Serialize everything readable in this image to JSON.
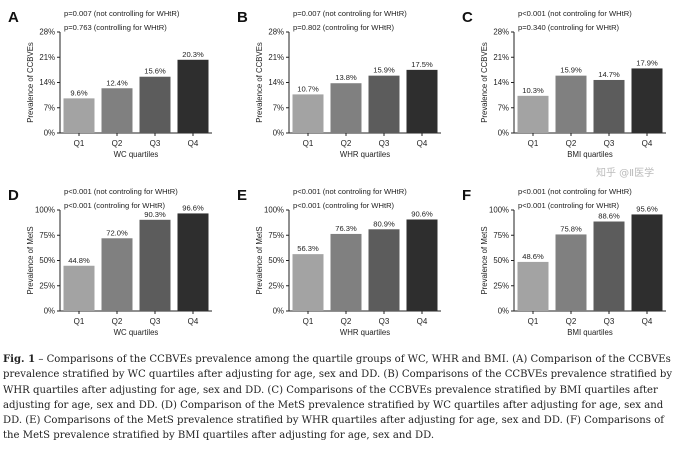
{
  "chart_data": [
    {
      "type": "bar",
      "panel": "A",
      "ylabel": "Prevalence of CCBVEs",
      "xlabel": "WC quartiles",
      "categories": [
        "Q1",
        "Q2",
        "Q3",
        "Q4"
      ],
      "values": [
        9.6,
        12.4,
        15.6,
        20.3
      ],
      "value_labels": [
        "9.6%",
        "12.4%",
        "15.6%",
        "20.3%"
      ],
      "ylim": [
        0,
        28
      ],
      "yticks": [
        "0%",
        "7%",
        "14%",
        "21%",
        "28%"
      ],
      "annotations": [
        "p=0.007 (not controlling for WHtR)",
        "p=0.763 (controlling for WHtR)"
      ]
    },
    {
      "type": "bar",
      "panel": "B",
      "ylabel": "Prevalence of CCBVEs",
      "xlabel": "WHR quartiles",
      "categories": [
        "Q1",
        "Q2",
        "Q3",
        "Q4"
      ],
      "values": [
        10.7,
        13.8,
        15.9,
        17.5
      ],
      "value_labels": [
        "10.7%",
        "13.8%",
        "15.9%",
        "17.5%"
      ],
      "ylim": [
        0,
        28
      ],
      "yticks": [
        "0%",
        "7%",
        "14%",
        "21%",
        "28%"
      ],
      "annotations": [
        "p=0.007 (not controling for WHtR)",
        "p=0.802 (controling for WHtR)"
      ]
    },
    {
      "type": "bar",
      "panel": "C",
      "ylabel": "Prevalence of CCBVEs",
      "xlabel": "BMI quartiles",
      "categories": [
        "Q1",
        "Q2",
        "Q3",
        "Q4"
      ],
      "values": [
        10.3,
        15.9,
        14.7,
        17.9
      ],
      "value_labels": [
        "10.3%",
        "15.9%",
        "14.7%",
        "17.9%"
      ],
      "ylim": [
        0,
        28
      ],
      "yticks": [
        "0%",
        "7%",
        "14%",
        "21%",
        "28%"
      ],
      "annotations": [
        "p<0.001 (not controling for WHtR)",
        "p=0.340 (controling for WHtR)"
      ]
    },
    {
      "type": "bar",
      "panel": "D",
      "ylabel": "Prevalence of MetS",
      "xlabel": "WC quartiles",
      "categories": [
        "Q1",
        "Q2",
        "Q3",
        "Q4"
      ],
      "values": [
        44.8,
        72.0,
        90.3,
        96.6
      ],
      "value_labels": [
        "44.8%",
        "72.0%",
        "90.3%",
        "96.6%"
      ],
      "ylim": [
        0,
        100
      ],
      "yticks": [
        "0%",
        "25%",
        "50%",
        "75%",
        "100%"
      ],
      "annotations": [
        "p<0.001 (not controling for WHtR)",
        "p<0.001 (controling for WHtR)"
      ]
    },
    {
      "type": "bar",
      "panel": "E",
      "ylabel": "Prevalence of MetS",
      "xlabel": "WHR quartiles",
      "categories": [
        "Q1",
        "Q2",
        "Q3",
        "Q4"
      ],
      "values": [
        56.3,
        76.3,
        80.9,
        90.6
      ],
      "value_labels": [
        "56.3%",
        "76.3%",
        "80.9%",
        "90.6%"
      ],
      "ylim": [
        0,
        100
      ],
      "yticks": [
        "0%",
        "25%",
        "50%",
        "75%",
        "100%"
      ],
      "annotations": [
        "p<0.001 (not controling for WHtR)",
        "p<0.001 (controling for WHtR)"
      ]
    },
    {
      "type": "bar",
      "panel": "F",
      "ylabel": "Prevalence of MetS",
      "xlabel": "BMI quartiles",
      "categories": [
        "Q1",
        "Q2",
        "Q3",
        "Q4"
      ],
      "values": [
        48.6,
        75.8,
        88.6,
        95.6
      ],
      "value_labels": [
        "48.6%",
        "75.8%",
        "88.6%",
        "95.6%"
      ],
      "ylim": [
        0,
        100
      ],
      "yticks": [
        "0%",
        "25%",
        "50%",
        "75%",
        "100%"
      ],
      "annotations": [
        "p<0.001 (not controling for WHtR)",
        "p<0.001 (controling for WHtR)"
      ]
    }
  ],
  "bar_colors": [
    "#a3a3a3",
    "#808080",
    "#5c5c5c",
    "#2e2e2e"
  ],
  "caption": {
    "label": "Fig. 1",
    "text": " – Comparisons of the CCBVEs prevalence among the quartile groups of WC, WHR and BMI. (A) Comparison of the CCBVEs prevalence stratified by WC quartiles after adjusting for age, sex and DD. (B) Comparisons of the CCBVEs prevalence stratified by WHR quartiles after adjusting for age, sex and DD. (C) Comparisons of the CCBVEs prevalence stratified by BMI quartiles after adjusting for age, sex and DD. (D) Comparison of the MetS prevalence stratified by WC quartiles after adjusting for age, sex and DD. (E) Comparisons of the MetS prevalence stratified by WHR quartiles after adjusting for age, sex and DD. (F) Comparisons of the MetS prevalence stratified by BMI quartiles after adjusting for age, sex and DD."
  },
  "watermark": "知乎 @Ⅱ医学"
}
